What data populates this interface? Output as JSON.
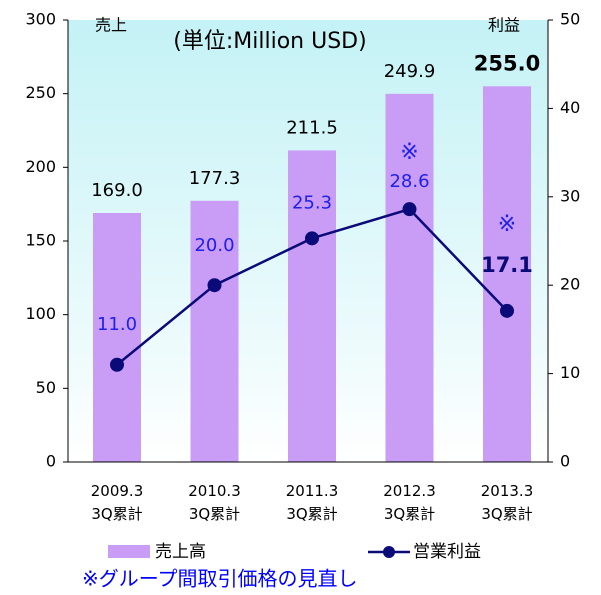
{
  "chart_data": {
    "type": "bar",
    "title": "(単位:Million USD)",
    "y_label": "売上",
    "y2_label": "利益",
    "categories": [
      "2009.3\n3Q累計",
      "2010.3\n3Q累計",
      "2011.3\n3Q累計",
      "2012.3\n3Q累計",
      "2013.3\n3Q累計"
    ],
    "series": [
      {
        "name": "売上高",
        "type": "bar",
        "color": "#c99cf6",
        "values": [
          169.0,
          177.3,
          211.5,
          249.9,
          255.0
        ],
        "value_labels": [
          "169.0",
          "177.3",
          "211.5",
          "249.9",
          "255.0"
        ]
      },
      {
        "name": "営業利益",
        "type": "line",
        "axis": "y2",
        "color": "#0a0a78",
        "label_color": "#2020ee",
        "values": [
          11.0,
          20.0,
          25.3,
          28.6,
          17.1
        ],
        "value_labels": [
          "11.0",
          "20.0",
          "25.3",
          "28.6",
          "17.1"
        ]
      }
    ],
    "annotations": [
      "※",
      "※"
    ],
    "footnote": "※グループ間取引価格の見直し",
    "ylim": [
      0,
      300
    ],
    "yticks": [
      0,
      50,
      100,
      150,
      200,
      250,
      300
    ],
    "y2lim": [
      0,
      50
    ],
    "y2ticks": [
      0,
      10,
      20,
      30,
      40,
      50
    ]
  }
}
